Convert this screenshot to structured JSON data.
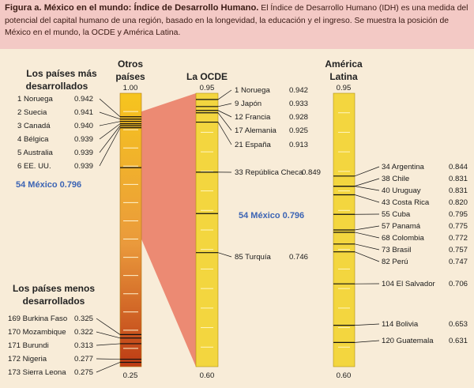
{
  "caption": {
    "title": "Figura a. México en el mundo: Índice de Desarrollo Humano.",
    "body": "El Índice de Desarrollo Humano (IDH) es una medida del potencial del capital humano de una región, basado en la longevidad, la educación y el ingreso. Se muestra la posición de México en el mundo, la OCDE y América Latina."
  },
  "colors": {
    "background": "#f8ecd8",
    "caption_bg": "#f3c9c5",
    "world_top": "#f6c51e",
    "world_mid": "#ea9a3c",
    "world_bottom": "#bd3b14",
    "yellow_bar": "#f3d63f",
    "zoom_band": "#ec8a73",
    "mexico_label": "#3c64b4"
  },
  "headers": {
    "developed": [
      "Los países más",
      "desarrollados"
    ],
    "less_developed": [
      "Los países menos",
      "desarrollados"
    ],
    "others": [
      "Otros",
      "países"
    ],
    "oecd": "La OCDE",
    "latam": [
      "América",
      "Latina"
    ]
  },
  "chart_data": [
    {
      "type": "bar",
      "panel": "world",
      "title": "Otros países",
      "ylim": [
        0.25,
        1.0
      ],
      "top_label": "1.00",
      "bottom_label": "0.25",
      "developed_countries": [
        {
          "rank": 1,
          "country": "Noruega",
          "value": 0.942
        },
        {
          "rank": 2,
          "country": "Suecia",
          "value": 0.941
        },
        {
          "rank": 3,
          "country": "Canadá",
          "value": 0.94
        },
        {
          "rank": 4,
          "country": "Bélgica",
          "value": 0.939
        },
        {
          "rank": 5,
          "country": "Australia",
          "value": 0.939
        },
        {
          "rank": 6,
          "country": "EE. UU.",
          "value": 0.939
        }
      ],
      "mexico": {
        "rank": 54,
        "country": "México",
        "value": 0.796
      },
      "less_developed_countries": [
        {
          "rank": 169,
          "country": "Burkina Faso",
          "value": 0.325
        },
        {
          "rank": 170,
          "country": "Mozambique",
          "value": 0.322
        },
        {
          "rank": 171,
          "country": "Burundi",
          "value": 0.313
        },
        {
          "rank": 172,
          "country": "Nigeria",
          "value": 0.277
        },
        {
          "rank": 173,
          "country": "Sierra Leona",
          "value": 0.275
        }
      ]
    },
    {
      "type": "bar",
      "panel": "oecd",
      "title": "La OCDE",
      "ylim": [
        0.6,
        0.95
      ],
      "top_label": "0.95",
      "bottom_label": "0.60",
      "countries": [
        {
          "rank": 1,
          "country": "Noruega",
          "value": 0.942
        },
        {
          "rank": 9,
          "country": "Japón",
          "value": 0.933
        },
        {
          "rank": 12,
          "country": "Francia",
          "value": 0.928
        },
        {
          "rank": 17,
          "country": "Alemania",
          "value": 0.925
        },
        {
          "rank": 21,
          "country": "España",
          "value": 0.913
        },
        {
          "rank": 33,
          "country": "República Checa",
          "value": 0.849
        },
        {
          "rank": 85,
          "country": "Turquía",
          "value": 0.746
        }
      ],
      "mexico": {
        "rank": 54,
        "country": "México",
        "value": 0.796
      }
    },
    {
      "type": "bar",
      "panel": "latam",
      "title": "América Latina",
      "ylim": [
        0.6,
        0.95
      ],
      "top_label": "0.95",
      "bottom_label": "0.60",
      "countries": [
        {
          "rank": 34,
          "country": "Argentina",
          "value": 0.844
        },
        {
          "rank": 38,
          "country": "Chile",
          "value": 0.831
        },
        {
          "rank": 40,
          "country": "Uruguay",
          "value": 0.831
        },
        {
          "rank": 43,
          "country": "Costa Rica",
          "value": 0.82
        },
        {
          "rank": 55,
          "country": "Cuba",
          "value": 0.795
        },
        {
          "rank": 57,
          "country": "Panamá",
          "value": 0.775
        },
        {
          "rank": 68,
          "country": "Colombia",
          "value": 0.772
        },
        {
          "rank": 73,
          "country": "Brasil",
          "value": 0.757
        },
        {
          "rank": 82,
          "country": "Perú",
          "value": 0.747
        },
        {
          "rank": 104,
          "country": "El Salvador",
          "value": 0.706
        },
        {
          "rank": 114,
          "country": "Bolivia",
          "value": 0.653
        },
        {
          "rank": 120,
          "country": "Guatemala",
          "value": 0.631
        }
      ]
    }
  ]
}
